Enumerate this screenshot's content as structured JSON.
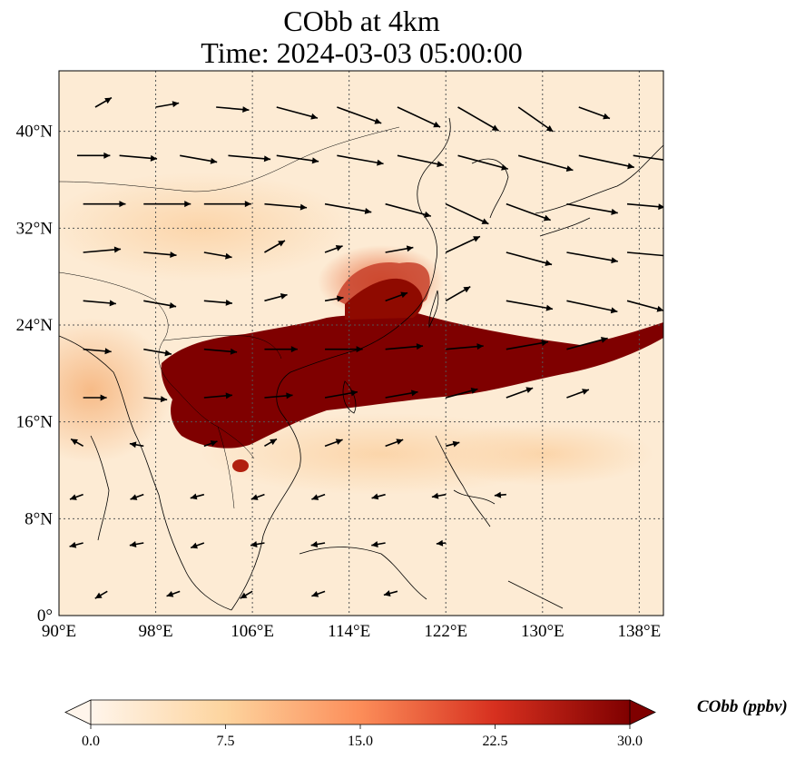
{
  "figure": {
    "title_line1": "CObb at 4km",
    "title_line2": "Time: 2024-03-03 05:00:00"
  },
  "map": {
    "lon_range": [
      90,
      140
    ],
    "lat_range": [
      0,
      45
    ],
    "lon_ticks": [
      {
        "value": 90,
        "label": "90°E"
      },
      {
        "value": 98,
        "label": "98°E"
      },
      {
        "value": 106,
        "label": "106°E"
      },
      {
        "value": 114,
        "label": "114°E"
      },
      {
        "value": 122,
        "label": "122°E"
      },
      {
        "value": 130,
        "label": "130°E"
      },
      {
        "value": 138,
        "label": "138°E"
      }
    ],
    "lat_ticks": [
      {
        "value": 0,
        "label": "0°"
      },
      {
        "value": 8,
        "label": "8°N"
      },
      {
        "value": 16,
        "label": "16°N"
      },
      {
        "value": 24,
        "label": "24°N"
      },
      {
        "value": 32,
        "label": "32°N"
      },
      {
        "value": 40,
        "label": "40°N"
      }
    ],
    "gridlines": true,
    "variable": "CObb",
    "plume_color": "#7f0000",
    "background_color": "#fdebd4"
  },
  "colorbar": {
    "label": "CObb (ppbv)",
    "ticks": [
      {
        "value": 0,
        "label": "0.0"
      },
      {
        "value": 7.5,
        "label": "7.5"
      },
      {
        "value": 15,
        "label": "15.0"
      },
      {
        "value": 22.5,
        "label": "22.5"
      },
      {
        "value": 30,
        "label": "30.0"
      }
    ],
    "range": [
      0,
      30
    ],
    "colors": [
      "#fff5eb",
      "#fdd49e",
      "#fc8d59",
      "#d7301f",
      "#7f0000"
    ],
    "extend": "both"
  },
  "wind_vectors": [
    {
      "lon": 91.5,
      "lat": 38,
      "dir": 0,
      "mag": 0.7
    },
    {
      "lon": 95,
      "lat": 38,
      "dir": -5,
      "mag": 0.8
    },
    {
      "lon": 100,
      "lat": 38,
      "dir": -10,
      "mag": 0.8
    },
    {
      "lon": 104,
      "lat": 38,
      "dir": -5,
      "mag": 0.9
    },
    {
      "lon": 108,
      "lat": 38,
      "dir": -8,
      "mag": 0.9
    },
    {
      "lon": 113,
      "lat": 38,
      "dir": -10,
      "mag": 1.0
    },
    {
      "lon": 118,
      "lat": 38,
      "dir": -12,
      "mag": 1.0
    },
    {
      "lon": 123,
      "lat": 38,
      "dir": -15,
      "mag": 1.1
    },
    {
      "lon": 128,
      "lat": 38,
      "dir": -15,
      "mag": 1.2
    },
    {
      "lon": 133,
      "lat": 38,
      "dir": -12,
      "mag": 1.2
    },
    {
      "lon": 137.5,
      "lat": 38,
      "dir": -8,
      "mag": 0.8
    },
    {
      "lon": 93,
      "lat": 42,
      "dir": 30,
      "mag": 0.4
    },
    {
      "lon": 98,
      "lat": 42,
      "dir": 10,
      "mag": 0.5
    },
    {
      "lon": 103,
      "lat": 42,
      "dir": -5,
      "mag": 0.7
    },
    {
      "lon": 108,
      "lat": 42,
      "dir": -15,
      "mag": 0.9
    },
    {
      "lon": 113,
      "lat": 42,
      "dir": -20,
      "mag": 1.0
    },
    {
      "lon": 118,
      "lat": 42,
      "dir": -25,
      "mag": 1.0
    },
    {
      "lon": 123,
      "lat": 42,
      "dir": -30,
      "mag": 1.0
    },
    {
      "lon": 128,
      "lat": 42,
      "dir": -35,
      "mag": 0.9
    },
    {
      "lon": 133,
      "lat": 42,
      "dir": -20,
      "mag": 0.7
    },
    {
      "lon": 92,
      "lat": 34,
      "dir": 0,
      "mag": 0.9
    },
    {
      "lon": 97,
      "lat": 34,
      "dir": 0,
      "mag": 1.0
    },
    {
      "lon": 102,
      "lat": 34,
      "dir": 0,
      "mag": 1.0
    },
    {
      "lon": 107,
      "lat": 34,
      "dir": -5,
      "mag": 0.9
    },
    {
      "lon": 112,
      "lat": 34,
      "dir": -10,
      "mag": 1.0
    },
    {
      "lon": 117,
      "lat": 34,
      "dir": -15,
      "mag": 1.0
    },
    {
      "lon": 122,
      "lat": 34,
      "dir": -25,
      "mag": 1.0
    },
    {
      "lon": 127,
      "lat": 34,
      "dir": -20,
      "mag": 1.0
    },
    {
      "lon": 132,
      "lat": 34,
      "dir": -10,
      "mag": 1.1
    },
    {
      "lon": 137,
      "lat": 34,
      "dir": -5,
      "mag": 0.8
    },
    {
      "lon": 92,
      "lat": 30,
      "dir": 5,
      "mag": 0.8
    },
    {
      "lon": 97,
      "lat": 30,
      "dir": -5,
      "mag": 0.7
    },
    {
      "lon": 102,
      "lat": 30,
      "dir": -10,
      "mag": 0.6
    },
    {
      "lon": 107,
      "lat": 30,
      "dir": 30,
      "mag": 0.5
    },
    {
      "lon": 112,
      "lat": 30,
      "dir": 20,
      "mag": 0.4
    },
    {
      "lon": 117,
      "lat": 30,
      "dir": 10,
      "mag": 0.6
    },
    {
      "lon": 122,
      "lat": 30,
      "dir": 25,
      "mag": 0.8
    },
    {
      "lon": 127,
      "lat": 30,
      "dir": -15,
      "mag": 1.0
    },
    {
      "lon": 132,
      "lat": 30,
      "dir": -10,
      "mag": 1.1
    },
    {
      "lon": 137,
      "lat": 30,
      "dir": -5,
      "mag": 0.9
    },
    {
      "lon": 92,
      "lat": 26,
      "dir": -5,
      "mag": 0.7
    },
    {
      "lon": 97,
      "lat": 26,
      "dir": -10,
      "mag": 0.7
    },
    {
      "lon": 102,
      "lat": 26,
      "dir": -5,
      "mag": 0.6
    },
    {
      "lon": 107,
      "lat": 26,
      "dir": 15,
      "mag": 0.5
    },
    {
      "lon": 112,
      "lat": 26,
      "dir": 10,
      "mag": 0.4
    },
    {
      "lon": 117,
      "lat": 26,
      "dir": 20,
      "mag": 0.5
    },
    {
      "lon": 122,
      "lat": 26,
      "dir": 30,
      "mag": 0.6
    },
    {
      "lon": 127,
      "lat": 26,
      "dir": -10,
      "mag": 1.0
    },
    {
      "lon": 132,
      "lat": 26,
      "dir": -12,
      "mag": 1.1
    },
    {
      "lon": 137,
      "lat": 26,
      "dir": -15,
      "mag": 0.8
    },
    {
      "lon": 92,
      "lat": 22,
      "dir": -5,
      "mag": 0.6
    },
    {
      "lon": 97,
      "lat": 22,
      "dir": -10,
      "mag": 0.6
    },
    {
      "lon": 102,
      "lat": 22,
      "dir": -5,
      "mag": 0.7
    },
    {
      "lon": 107,
      "lat": 22,
      "dir": 0,
      "mag": 0.7
    },
    {
      "lon": 112,
      "lat": 22,
      "dir": 0,
      "mag": 0.8
    },
    {
      "lon": 117,
      "lat": 22,
      "dir": 5,
      "mag": 0.8
    },
    {
      "lon": 122,
      "lat": 22,
      "dir": 5,
      "mag": 0.8
    },
    {
      "lon": 127,
      "lat": 22,
      "dir": 10,
      "mag": 0.9
    },
    {
      "lon": 132,
      "lat": 22,
      "dir": 15,
      "mag": 0.9
    },
    {
      "lon": 92,
      "lat": 18,
      "dir": 0,
      "mag": 0.5
    },
    {
      "lon": 97,
      "lat": 18,
      "dir": -5,
      "mag": 0.5
    },
    {
      "lon": 102,
      "lat": 18,
      "dir": 5,
      "mag": 0.6
    },
    {
      "lon": 107,
      "lat": 18,
      "dir": 5,
      "mag": 0.6
    },
    {
      "lon": 112,
      "lat": 18,
      "dir": 10,
      "mag": 0.7
    },
    {
      "lon": 117,
      "lat": 18,
      "dir": 10,
      "mag": 0.7
    },
    {
      "lon": 122,
      "lat": 18,
      "dir": 15,
      "mag": 0.7
    },
    {
      "lon": 127,
      "lat": 18,
      "dir": 20,
      "mag": 0.6
    },
    {
      "lon": 132,
      "lat": 18,
      "dir": 20,
      "mag": 0.5
    },
    {
      "lon": 92,
      "lat": 14,
      "dir": 150,
      "mag": 0.3
    },
    {
      "lon": 97,
      "lat": 14,
      "dir": 170,
      "mag": 0.3
    },
    {
      "lon": 102,
      "lat": 14,
      "dir": 20,
      "mag": 0.3
    },
    {
      "lon": 107,
      "lat": 14,
      "dir": 30,
      "mag": 0.3
    },
    {
      "lon": 112,
      "lat": 14,
      "dir": 20,
      "mag": 0.4
    },
    {
      "lon": 117,
      "lat": 14,
      "dir": 20,
      "mag": 0.4
    },
    {
      "lon": 122,
      "lat": 14,
      "dir": 15,
      "mag": 0.3
    },
    {
      "lon": 92,
      "lat": 10,
      "dir": 200,
      "mag": 0.3
    },
    {
      "lon": 97,
      "lat": 10,
      "dir": 200,
      "mag": 0.3
    },
    {
      "lon": 102,
      "lat": 10,
      "dir": 195,
      "mag": 0.3
    },
    {
      "lon": 107,
      "lat": 10,
      "dir": 200,
      "mag": 0.3
    },
    {
      "lon": 112,
      "lat": 10,
      "dir": 200,
      "mag": 0.3
    },
    {
      "lon": 117,
      "lat": 10,
      "dir": 195,
      "mag": 0.3
    },
    {
      "lon": 122,
      "lat": 10,
      "dir": 190,
      "mag": 0.3
    },
    {
      "lon": 127,
      "lat": 10,
      "dir": 185,
      "mag": 0.25
    },
    {
      "lon": 92,
      "lat": 6,
      "dir": 195,
      "mag": 0.3
    },
    {
      "lon": 97,
      "lat": 6,
      "dir": 190,
      "mag": 0.3
    },
    {
      "lon": 102,
      "lat": 6,
      "dir": 200,
      "mag": 0.3
    },
    {
      "lon": 107,
      "lat": 6,
      "dir": 190,
      "mag": 0.3
    },
    {
      "lon": 112,
      "lat": 6,
      "dir": 190,
      "mag": 0.3
    },
    {
      "lon": 117,
      "lat": 6,
      "dir": 190,
      "mag": 0.3
    },
    {
      "lon": 122,
      "lat": 6,
      "dir": 185,
      "mag": 0.2
    },
    {
      "lon": 94,
      "lat": 2,
      "dir": 210,
      "mag": 0.3
    },
    {
      "lon": 100,
      "lat": 2,
      "dir": 200,
      "mag": 0.3
    },
    {
      "lon": 106,
      "lat": 2,
      "dir": 210,
      "mag": 0.3
    },
    {
      "lon": 112,
      "lat": 2,
      "dir": 200,
      "mag": 0.3
    },
    {
      "lon": 118,
      "lat": 2,
      "dir": 195,
      "mag": 0.3
    }
  ]
}
